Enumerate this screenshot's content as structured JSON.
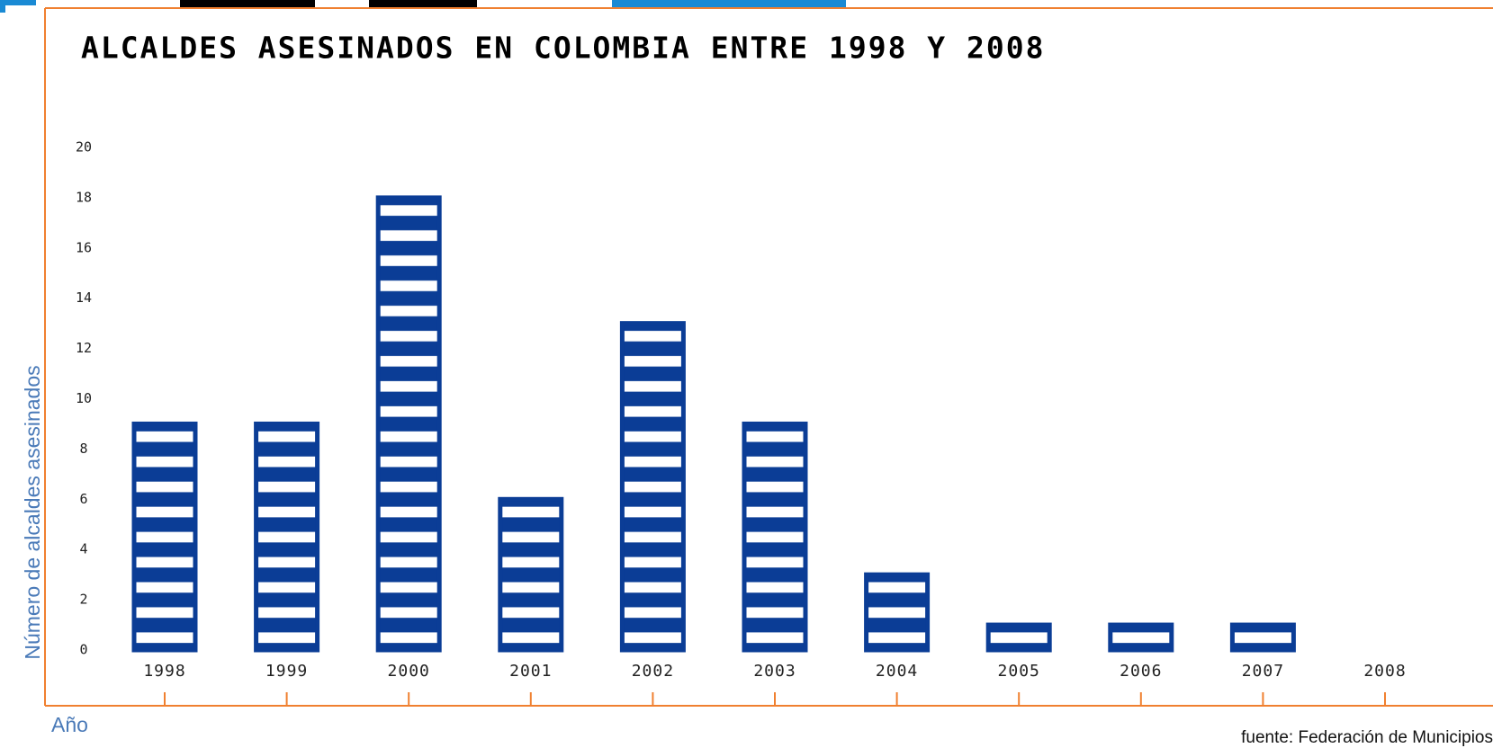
{
  "chart_data": {
    "type": "bar",
    "title": "ALCALDES ASESINADOS EN COLOMBIA ENTRE 1998 Y 2008",
    "y_label": "Número de alcaldes asesinados",
    "x_label": "Año",
    "source": "fuente: Federación de Municipios",
    "categories": [
      "1998",
      "1999",
      "2000",
      "2001",
      "2002",
      "2003",
      "2004",
      "2005",
      "2006",
      "2007",
      "2008"
    ],
    "values": [
      9,
      9,
      18,
      6,
      13,
      9,
      3,
      1,
      1,
      1,
      0
    ],
    "color": "#0b3d96",
    "ylim": [
      0,
      20
    ],
    "yticks": [
      0,
      2,
      4,
      6,
      8,
      10,
      12,
      14,
      16,
      18,
      20
    ],
    "grid": false
  }
}
